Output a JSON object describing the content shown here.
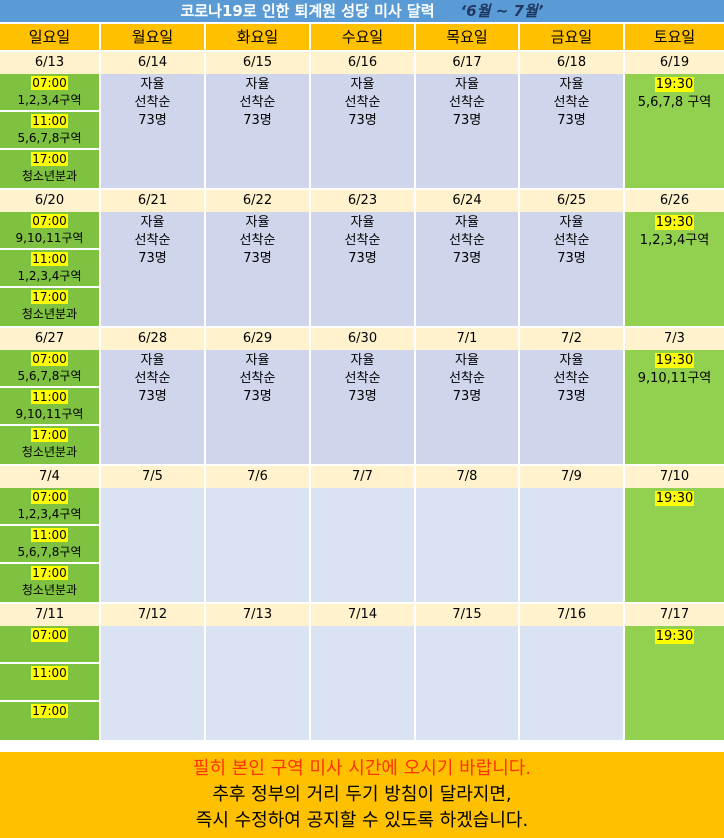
{
  "title": {
    "text": "코로나19로 인한 퇴계원 성당  미사 달력",
    "range": "‘6월 ~ 7월’"
  },
  "weekdays": [
    "일요일",
    "월요일",
    "화요일",
    "수요일",
    "목요일",
    "금요일",
    "토요일"
  ],
  "colors": {
    "title": "#5b9bd5",
    "header": "#ffc000",
    "date_row": "#fff2cc",
    "sunday": "#7fc241",
    "saturday": "#92d050",
    "weekday": "#cfd5ea",
    "weekday_later": "#dae3f3",
    "highlight": "#ffff00",
    "warning": "#ff3300"
  },
  "weeks": [
    {
      "dates": [
        "6/13",
        "6/14",
        "6/15",
        "6/16",
        "6/17",
        "6/18",
        "6/19"
      ],
      "sunday": [
        {
          "time": "07:00",
          "group": "1,2,3,4구역"
        },
        {
          "time": "11:00",
          "group": "5,6,7,8구역"
        },
        {
          "time": "17:00",
          "group": "청소년분과"
        }
      ],
      "weekday_lines": [
        "자율",
        "선착순",
        "73명"
      ],
      "saturday": {
        "time": "19:30",
        "group": "5,6,7,8 구역"
      }
    },
    {
      "dates": [
        "6/20",
        "6/21",
        "6/22",
        "6/23",
        "6/24",
        "6/25",
        "6/26"
      ],
      "sunday": [
        {
          "time": "07:00",
          "group": "9,10,11구역"
        },
        {
          "time": "11:00",
          "group": "1,2,3,4구역"
        },
        {
          "time": "17:00",
          "group": "청소년분과"
        }
      ],
      "weekday_lines": [
        "자율",
        "선착순",
        "73명"
      ],
      "saturday": {
        "time": "19:30",
        "group": "1,2,3,4구역"
      }
    },
    {
      "dates": [
        "6/27",
        "6/28",
        "6/29",
        "6/30",
        "7/1",
        "7/2",
        "7/3"
      ],
      "sunday": [
        {
          "time": "07:00",
          "group": "5,6,7,8구역"
        },
        {
          "time": "11:00",
          "group": "9,10,11구역"
        },
        {
          "time": "17:00",
          "group": "청소년분과"
        }
      ],
      "weekday_lines": [
        "자율",
        "선착순",
        "73명"
      ],
      "saturday": {
        "time": "19:30",
        "group": "9,10,11구역"
      }
    },
    {
      "dates": [
        "7/4",
        "7/5",
        "7/6",
        "7/7",
        "7/8",
        "7/9",
        "7/10"
      ],
      "sunday": [
        {
          "time": "07:00",
          "group": "1,2,3,4구역"
        },
        {
          "time": "11:00",
          "group": "5,6,7,8구역"
        },
        {
          "time": "17:00",
          "group": "청소년분과"
        }
      ],
      "weekday_lines": [],
      "saturday": {
        "time": "19:30",
        "group": ""
      }
    },
    {
      "dates": [
        "7/11",
        "7/12",
        "7/13",
        "7/14",
        "7/15",
        "7/16",
        "7/17"
      ],
      "sunday": [
        {
          "time": "07:00",
          "group": ""
        },
        {
          "time": "11:00",
          "group": ""
        },
        {
          "time": "17:00",
          "group": ""
        }
      ],
      "weekday_lines": [],
      "saturday": {
        "time": "19:30",
        "group": ""
      }
    }
  ],
  "footer": {
    "warning": "필히 본인 구역 미사 시간에 오시기 바랍니다.",
    "line2": "추후 정부의 거리 두기 방침이 달라지면,",
    "line3": "즉시 수정하여 공지할 수 있도록 하겠습니다."
  }
}
